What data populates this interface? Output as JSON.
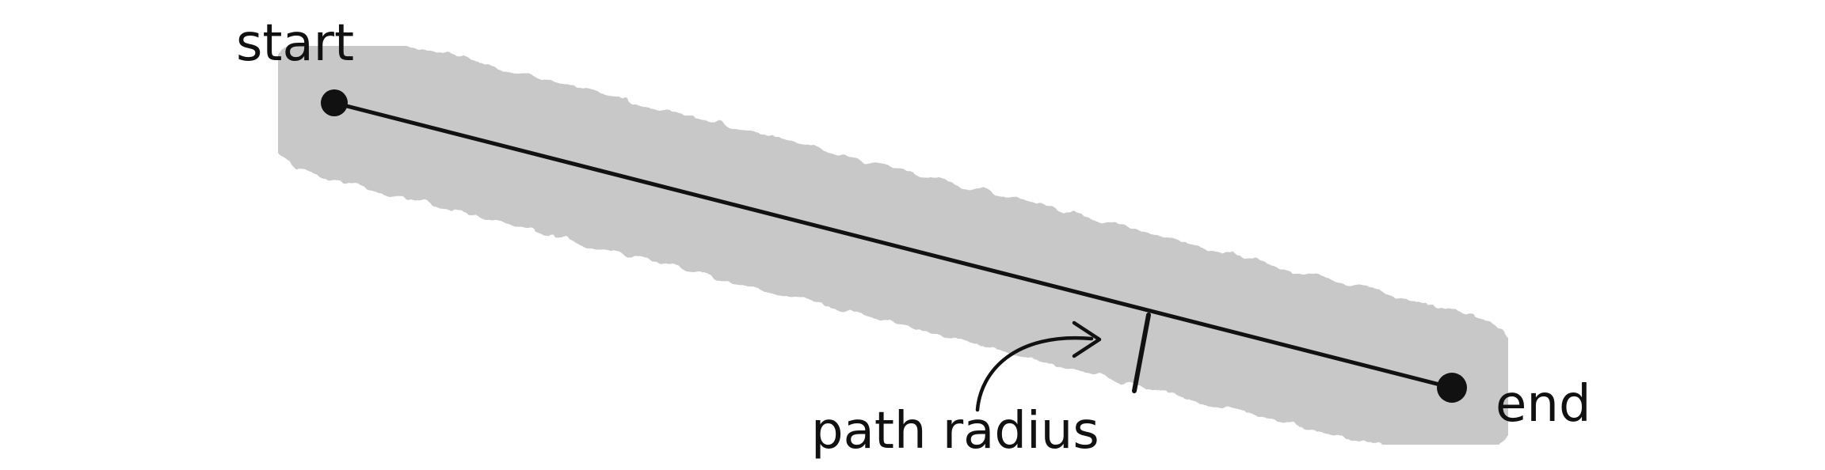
{
  "labels": {
    "start": "start",
    "end": "end",
    "path_radius": "path radius"
  },
  "colors": {
    "band": "#c8c8c8",
    "ink": "#111111",
    "background": "#ffffff"
  }
}
